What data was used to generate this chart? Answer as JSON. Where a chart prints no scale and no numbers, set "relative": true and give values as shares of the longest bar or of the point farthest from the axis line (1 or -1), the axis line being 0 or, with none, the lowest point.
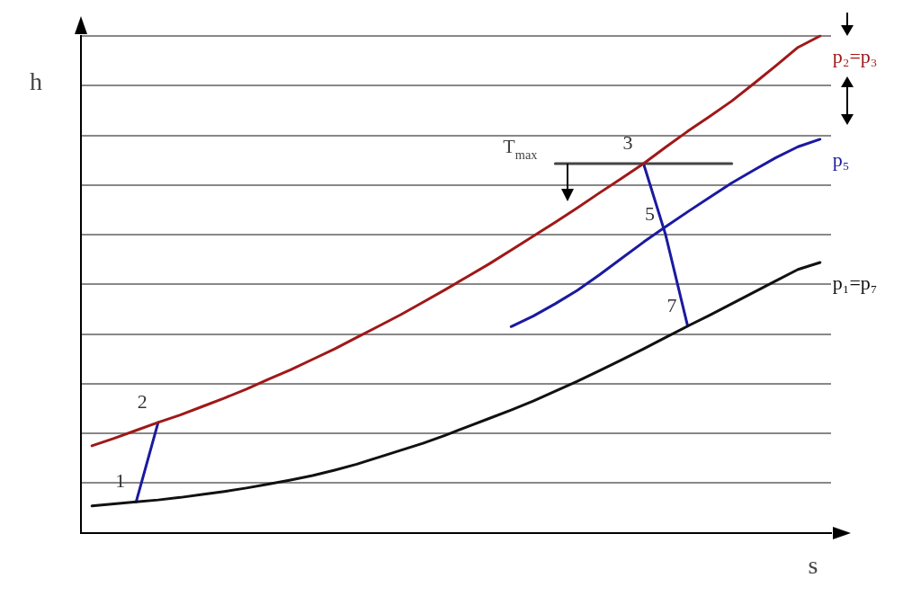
{
  "chart_data": {
    "type": "line",
    "relative": true,
    "xlabel": "s",
    "ylabel": "h",
    "grid": "y",
    "legend": false,
    "marker": "none",
    "line_style": "solid",
    "categories": [
      null,
      null,
      null,
      null,
      null,
      null,
      null,
      null,
      null,
      null,
      null,
      null,
      null,
      null,
      null,
      null,
      null,
      null,
      null,
      null,
      null,
      null,
      null,
      null,
      null,
      null,
      null,
      null,
      null,
      null,
      null,
      null,
      null,
      null
    ],
    "series": [
      {
        "name": "p₂=p₃",
        "color": "#a01818",
        "values": [
          0.175,
          0.19,
          0.206,
          0.222,
          0.237,
          0.254,
          0.271,
          0.289,
          0.309,
          0.328,
          0.349,
          0.37,
          0.393,
          0.416,
          0.439,
          0.464,
          0.489,
          0.515,
          0.541,
          0.569,
          0.597,
          0.625,
          0.654,
          0.684,
          0.713,
          0.743,
          0.776,
          0.808,
          0.838,
          0.869,
          0.904,
          0.94,
          0.977,
          1
        ]
      },
      {
        "name": "p₁=p₇",
        "color": "#111111",
        "values": [
          0.054,
          0.058,
          0.062,
          0.066,
          0.071,
          0.077,
          0.083,
          0.09,
          0.098,
          0.106,
          0.115,
          0.126,
          0.138,
          0.152,
          0.166,
          0.18,
          0.196,
          0.213,
          0.23,
          0.247,
          0.265,
          0.285,
          0.305,
          0.326,
          0.348,
          0.37,
          0.393,
          0.416,
          0.438,
          0.461,
          0.484,
          0.507,
          0.53,
          0.544
        ]
      },
      {
        "name": "p₅",
        "color": "#1a1aa0",
        "values": [
          null,
          null,
          null,
          null,
          null,
          null,
          null,
          null,
          null,
          null,
          null,
          null,
          null,
          null,
          null,
          null,
          null,
          null,
          null,
          0.415,
          0.436,
          0.461,
          0.488,
          0.519,
          0.552,
          0.585,
          0.616,
          0.646,
          0.675,
          0.704,
          0.73,
          0.755,
          0.777,
          0.792
        ]
      },
      {
        "color": "#1a1aa0",
        "values": [
          null,
          null,
          0.062,
          0.222,
          null,
          null,
          null,
          null,
          null,
          null,
          null,
          null,
          null,
          null,
          null,
          null,
          null,
          null,
          null,
          null,
          null,
          null,
          null,
          null,
          null,
          null,
          null,
          null,
          null,
          null,
          null,
          null,
          null,
          null
        ]
      },
      {
        "color": "#1a1aa0",
        "values": [
          null,
          null,
          null,
          null,
          null,
          null,
          null,
          null,
          null,
          null,
          null,
          null,
          null,
          null,
          null,
          null,
          null,
          null,
          null,
          null,
          null,
          null,
          null,
          null,
          null,
          0.743,
          0.6,
          0.416,
          null,
          null,
          null,
          null,
          null,
          null
        ]
      },
      {
        "name": "T$_{max}$",
        "color": "#444444",
        "values": [
          null,
          null,
          null,
          null,
          null,
          null,
          null,
          null,
          null,
          null,
          null,
          null,
          null,
          null,
          null,
          null,
          null,
          null,
          null,
          null,
          null,
          0.743,
          0.743,
          0.743,
          0.743,
          0.743,
          0.743,
          0.743,
          0.743,
          0.743,
          null,
          null,
          null,
          null
        ]
      }
    ],
    "annotations": [
      "1",
      "2",
      "3",
      "5",
      "7"
    ]
  }
}
